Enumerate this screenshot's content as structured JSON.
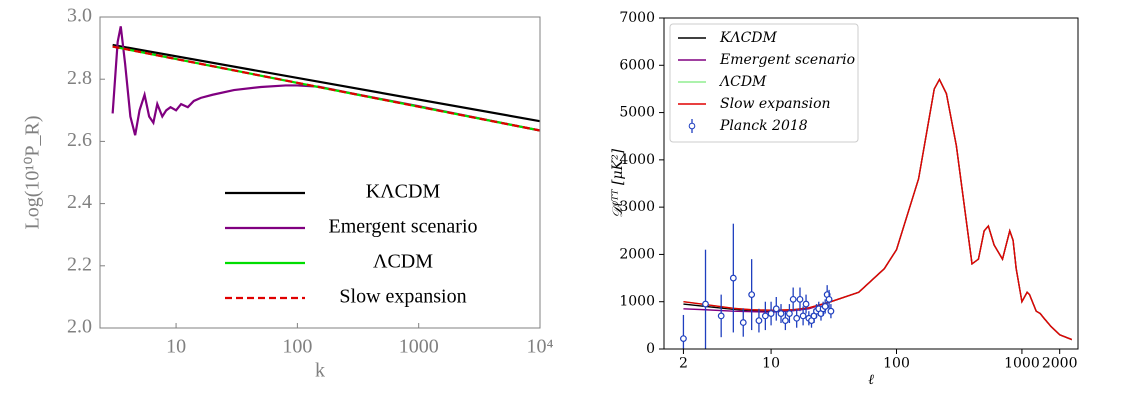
{
  "chart_data": [
    {
      "type": "line",
      "xscale": "log",
      "xlabel": "k",
      "ylabel": "Log(10¹⁰P_R)",
      "xlim": [
        2.36,
        10000
      ],
      "ylim": [
        2.0,
        3.0
      ],
      "xticks": [
        10,
        100,
        1000,
        {
          "value": 10000,
          "label": "10⁴"
        }
      ],
      "yticks": [
        {
          "value": 2.0,
          "label": "2.0"
        },
        2.2,
        2.4,
        2.6,
        2.8,
        {
          "value": 3.0,
          "label": "3.0"
        }
      ],
      "legend": "lower right",
      "legend_frame": false,
      "series": [
        {
          "name": "KΛCDM",
          "color": "#000000",
          "x": [
            3,
            10000
          ],
          "values": [
            2.91,
            2.665
          ]
        },
        {
          "name": "Emergent scenario",
          "color": "#800080",
          "x": [
            3,
            3.3,
            3.5,
            3.8,
            4.2,
            4.6,
            5.0,
            5.5,
            6.0,
            6.5,
            7.0,
            7.7,
            8.3,
            9.0,
            10,
            11,
            12.5,
            14,
            16,
            20,
            30,
            50,
            80,
            100,
            150,
            300,
            1000,
            10000
          ],
          "values": [
            2.69,
            2.92,
            2.97,
            2.85,
            2.68,
            2.62,
            2.7,
            2.75,
            2.68,
            2.66,
            2.72,
            2.68,
            2.7,
            2.71,
            2.7,
            2.72,
            2.71,
            2.73,
            2.74,
            2.75,
            2.765,
            2.775,
            2.78,
            2.78,
            2.776,
            2.752,
            2.713,
            2.635
          ]
        },
        {
          "name": "ΛCDM",
          "color": "#00dd00",
          "x": [
            3,
            10000
          ],
          "values": [
            2.905,
            2.635
          ]
        },
        {
          "name": "Slow expansion",
          "color": "#e00000",
          "dash": true,
          "x": [
            3,
            10000
          ],
          "values": [
            2.905,
            2.635
          ]
        }
      ]
    },
    {
      "type": "line",
      "xscale": "log",
      "xlabel": "ℓ",
      "ylabel": "𝒟ℓᵀᵀ [μK²]",
      "xlim": [
        1.4,
        2800
      ],
      "ylim": [
        0,
        7000
      ],
      "xticks": [
        2,
        10,
        100,
        1000,
        2000
      ],
      "yticks": [
        0,
        1000,
        2000,
        3000,
        4000,
        5000,
        6000,
        7000
      ],
      "legend": "upper left",
      "legend_frame": true,
      "series": [
        {
          "name": "KΛCDM",
          "color": "#000000",
          "x": [
            2,
            3,
            5,
            7,
            10,
            15,
            20,
            30,
            50,
            80,
            100,
            150,
            200,
            220,
            250,
            300,
            400,
            450,
            500,
            540,
            600,
            700,
            800,
            850,
            900,
            1000,
            1100,
            1150,
            1300,
            1400,
            1500,
            1700,
            2000,
            2500
          ],
          "values": [
            950,
            900,
            840,
            810,
            800,
            820,
            860,
            1000,
            1200,
            1700,
            2100,
            3600,
            5500,
            5700,
            5400,
            4300,
            1800,
            1900,
            2500,
            2600,
            2200,
            1900,
            2500,
            2300,
            1700,
            1000,
            1200,
            1150,
            800,
            750,
            650,
            480,
            300,
            200
          ]
        },
        {
          "name": "Emergent scenario",
          "color": "#800080",
          "x": [
            2,
            3,
            5,
            7,
            10,
            15,
            20,
            30,
            50,
            80,
            100,
            150,
            200,
            220,
            250,
            300,
            400,
            450,
            500,
            540,
            600,
            700,
            800,
            850,
            900,
            1000,
            1100,
            1150,
            1300,
            1400,
            1500,
            1700,
            2000,
            2500
          ],
          "values": [
            850,
            830,
            800,
            790,
            780,
            810,
            850,
            1000,
            1200,
            1700,
            2100,
            3600,
            5500,
            5700,
            5400,
            4300,
            1800,
            1900,
            2500,
            2600,
            2200,
            1900,
            2500,
            2300,
            1700,
            1000,
            1200,
            1150,
            800,
            750,
            650,
            480,
            300,
            200
          ]
        },
        {
          "name": "ΛCDM",
          "color": "#90ee90",
          "x": [
            2,
            3,
            5,
            7,
            10,
            15,
            20,
            30,
            50,
            80,
            100,
            150,
            200,
            220,
            250,
            300,
            400,
            450,
            500,
            540,
            600,
            700,
            800,
            850,
            900,
            1000,
            1100,
            1150,
            1300,
            1400,
            1500,
            1700,
            2000,
            2500
          ],
          "values": [
            1000,
            940,
            860,
            830,
            820,
            830,
            870,
            1000,
            1200,
            1700,
            2100,
            3600,
            5500,
            5700,
            5400,
            4300,
            1800,
            1900,
            2500,
            2600,
            2200,
            1900,
            2500,
            2300,
            1700,
            1000,
            1200,
            1150,
            800,
            750,
            650,
            480,
            300,
            200
          ]
        },
        {
          "name": "Slow expansion",
          "color": "#e00000",
          "x": [
            2,
            3,
            5,
            7,
            10,
            15,
            20,
            30,
            50,
            80,
            100,
            150,
            200,
            220,
            250,
            300,
            400,
            450,
            500,
            540,
            600,
            700,
            800,
            850,
            900,
            1000,
            1100,
            1150,
            1300,
            1400,
            1500,
            1700,
            2000,
            2500
          ],
          "values": [
            1000,
            940,
            860,
            830,
            820,
            830,
            870,
            1000,
            1200,
            1700,
            2100,
            3600,
            5500,
            5700,
            5400,
            4300,
            1800,
            1900,
            2500,
            2600,
            2200,
            1900,
            2500,
            2300,
            1700,
            1000,
            1200,
            1150,
            800,
            750,
            650,
            480,
            300,
            200
          ]
        }
      ],
      "points": {
        "name": "Planck 2018",
        "color": "#1f3fbf",
        "x": [
          2,
          3,
          4,
          5,
          6,
          7,
          8,
          9,
          10,
          11,
          12,
          13,
          14,
          15,
          16,
          17,
          18,
          19,
          20,
          21,
          22,
          23,
          24,
          25,
          26,
          27,
          28,
          29,
          30
        ],
        "values": [
          220,
          950,
          700,
          1500,
          560,
          1150,
          600,
          700,
          750,
          850,
          750,
          600,
          750,
          1050,
          650,
          1050,
          700,
          950,
          650,
          600,
          700,
          800,
          850,
          750,
          850,
          900,
          1150,
          1050,
          800
        ],
        "errors": [
          500,
          1150,
          450,
          1150,
          300,
          750,
          250,
          300,
          250,
          250,
          200,
          200,
          200,
          250,
          200,
          250,
          200,
          200,
          150,
          150,
          150,
          150,
          150,
          150,
          150,
          150,
          200,
          200,
          150
        ]
      }
    }
  ]
}
